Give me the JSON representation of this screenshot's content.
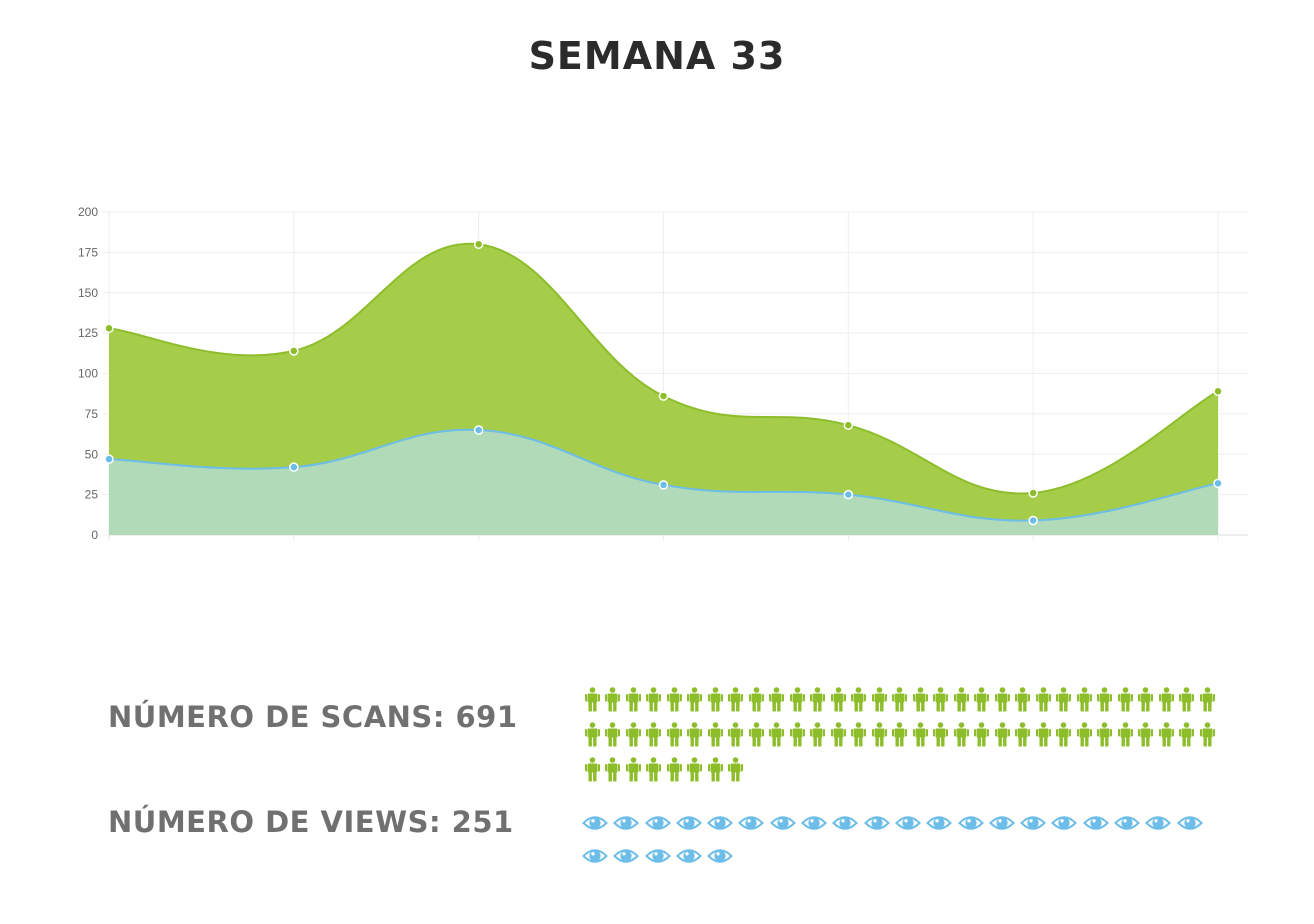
{
  "page": {
    "title": "SEMANA 33"
  },
  "stats": {
    "scans_label": "NÚMERO DE SCANS: 691",
    "views_label": "NÚMERO DE VIEWS: 251",
    "scans_icon": "person-icon",
    "views_icon": "eye-icon",
    "scans_icon_count": 70,
    "views_icon_count": 25
  },
  "colors": {
    "green_fill": "#a6cd4a",
    "green_line": "#8dbd2a",
    "light_fill": "#b1dbb8",
    "blue_line": "#6cbde8",
    "person_icon": "#8dbd2a",
    "eye_icon": "#6cbde8",
    "grid": "#eeeeee",
    "label_text": "#707070"
  },
  "chart_data": {
    "type": "area",
    "title": "",
    "xlabel": "",
    "ylabel": "",
    "x_count": 7,
    "ylim": [
      0,
      200
    ],
    "y_ticks": [
      0,
      25,
      50,
      75,
      100,
      125,
      150,
      175,
      200
    ],
    "grid": true,
    "legend": "none",
    "series": [
      {
        "values": [
          128,
          114,
          180,
          86,
          68,
          26,
          89
        ],
        "color": "#a6cd4a"
      },
      {
        "values": [
          47,
          42,
          65,
          31,
          25,
          9,
          32
        ],
        "color": "#b1dbb8"
      }
    ]
  }
}
